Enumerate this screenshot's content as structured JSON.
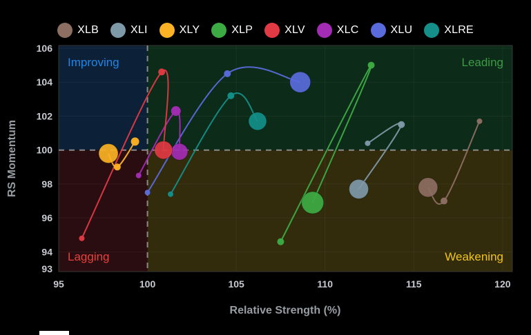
{
  "chart_data": {
    "type": "scatter",
    "chart_kind": "relative-rotation-graph",
    "title": "",
    "xlabel": "Relative Strength (%)",
    "ylabel": "RS Momentum",
    "xlim": [
      95,
      120.55
    ],
    "ylim": [
      92.84,
      106.16
    ],
    "x_ticks": [
      95,
      100,
      105,
      110,
      115,
      120
    ],
    "y_ticks": [
      93,
      94,
      96,
      98,
      100,
      102,
      104,
      106
    ],
    "center": {
      "x": 100,
      "y": 100
    },
    "grid": true,
    "legend_position": "top",
    "quadrants": [
      {
        "id": "improving",
        "label": "Improving",
        "text_color": "#2086e8",
        "bg": "#0c2137"
      },
      {
        "id": "leading",
        "label": "Leading",
        "text_color": "#3d9b46",
        "bg": "#0c2b18"
      },
      {
        "id": "lagging",
        "label": "Lagging",
        "text_color": "#e8413c",
        "bg": "#2a0d11"
      },
      {
        "id": "weakening",
        "label": "Weakening",
        "text_color": "#f3c517",
        "bg": "#322b0c"
      }
    ],
    "divider_color": "#9e9e9e",
    "series": [
      {
        "name": "XLB",
        "color": "#8d6e63",
        "points": [
          [
            118.7,
            101.7,
            4
          ],
          [
            116.7,
            97.0,
            5
          ],
          [
            115.8,
            97.8,
            14
          ]
        ]
      },
      {
        "name": "XLI",
        "color": "#7e99a8",
        "points": [
          [
            112.4,
            100.4,
            4
          ],
          [
            114.3,
            101.5,
            5
          ],
          [
            111.9,
            97.7,
            14
          ]
        ]
      },
      {
        "name": "XLY",
        "color": "#fbb224",
        "points": [
          [
            99.3,
            100.5,
            6
          ],
          [
            98.3,
            99.0,
            5
          ],
          [
            97.8,
            99.8,
            14
          ]
        ]
      },
      {
        "name": "XLP",
        "color": "#3dab44",
        "points": [
          [
            107.5,
            94.6,
            5
          ],
          [
            112.6,
            105.0,
            5
          ],
          [
            109.3,
            96.9,
            16
          ]
        ]
      },
      {
        "name": "XLV",
        "color": "#e23a44",
        "points": [
          [
            96.3,
            94.8,
            4
          ],
          [
            100.8,
            104.6,
            5
          ],
          [
            100.9,
            100.0,
            13
          ]
        ]
      },
      {
        "name": "XLC",
        "color": "#a32cb5",
        "points": [
          [
            99.5,
            98.5,
            4
          ],
          [
            101.6,
            102.3,
            7
          ],
          [
            101.8,
            99.9,
            12
          ]
        ]
      },
      {
        "name": "XLU",
        "color": "#5a6bdc",
        "points": [
          [
            100.0,
            97.5,
            4
          ],
          [
            104.5,
            104.5,
            5
          ],
          [
            108.6,
            104.0,
            15
          ]
        ]
      },
      {
        "name": "XLRE",
        "color": "#148f8a",
        "points": [
          [
            101.3,
            97.4,
            4
          ],
          [
            104.7,
            103.2,
            5
          ],
          [
            106.2,
            101.7,
            13
          ]
        ]
      }
    ]
  }
}
